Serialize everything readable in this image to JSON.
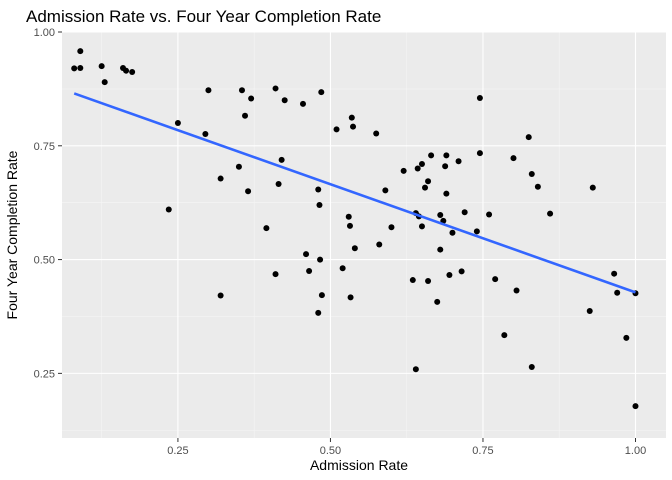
{
  "chart_data": {
    "type": "scatter",
    "title": "Admission Rate vs. Four Year Completion Rate",
    "xlabel": "Admission Rate",
    "ylabel": "Four Year Completion Rate",
    "xlim": [
      0.06,
      1.05
    ],
    "ylim": [
      0.108,
      1.0
    ],
    "x_ticks": [
      0.25,
      0.5,
      0.75,
      1.0
    ],
    "x_tick_labels": [
      "0.25",
      "0.50",
      "0.75",
      "1.00"
    ],
    "y_ticks": [
      0.25,
      0.5,
      0.75,
      1.0
    ],
    "y_tick_labels": [
      "0.25",
      "0.50",
      "0.75",
      "1.00"
    ],
    "grid": true,
    "colors": {
      "panel": "#ebebeb",
      "grid_major": "#ffffff",
      "grid_minor": "#f5f5f5",
      "point": "#000000",
      "trend": "#3366ff"
    },
    "trend_line": {
      "x": [
        0.08,
        1.0
      ],
      "y": [
        0.865,
        0.428
      ]
    },
    "points": [
      {
        "x": 0.08,
        "y": 0.92
      },
      {
        "x": 0.09,
        "y": 0.958
      },
      {
        "x": 0.09,
        "y": 0.921
      },
      {
        "x": 0.125,
        "y": 0.925
      },
      {
        "x": 0.13,
        "y": 0.89
      },
      {
        "x": 0.16,
        "y": 0.921
      },
      {
        "x": 0.165,
        "y": 0.915
      },
      {
        "x": 0.175,
        "y": 0.912
      },
      {
        "x": 0.235,
        "y": 0.61
      },
      {
        "x": 0.25,
        "y": 0.8
      },
      {
        "x": 0.295,
        "y": 0.776
      },
      {
        "x": 0.3,
        "y": 0.872
      },
      {
        "x": 0.32,
        "y": 0.678
      },
      {
        "x": 0.32,
        "y": 0.421
      },
      {
        "x": 0.35,
        "y": 0.704
      },
      {
        "x": 0.355,
        "y": 0.872
      },
      {
        "x": 0.36,
        "y": 0.816
      },
      {
        "x": 0.365,
        "y": 0.65
      },
      {
        "x": 0.37,
        "y": 0.854
      },
      {
        "x": 0.395,
        "y": 0.569
      },
      {
        "x": 0.41,
        "y": 0.876
      },
      {
        "x": 0.41,
        "y": 0.468
      },
      {
        "x": 0.415,
        "y": 0.666
      },
      {
        "x": 0.42,
        "y": 0.719
      },
      {
        "x": 0.425,
        "y": 0.85
      },
      {
        "x": 0.455,
        "y": 0.842
      },
      {
        "x": 0.46,
        "y": 0.512
      },
      {
        "x": 0.465,
        "y": 0.475
      },
      {
        "x": 0.48,
        "y": 0.383
      },
      {
        "x": 0.48,
        "y": 0.654
      },
      {
        "x": 0.482,
        "y": 0.62
      },
      {
        "x": 0.483,
        "y": 0.5
      },
      {
        "x": 0.485,
        "y": 0.868
      },
      {
        "x": 0.486,
        "y": 0.422
      },
      {
        "x": 0.51,
        "y": 0.786
      },
      {
        "x": 0.52,
        "y": 0.481
      },
      {
        "x": 0.53,
        "y": 0.594
      },
      {
        "x": 0.532,
        "y": 0.574
      },
      {
        "x": 0.533,
        "y": 0.417
      },
      {
        "x": 0.535,
        "y": 0.812
      },
      {
        "x": 0.537,
        "y": 0.792
      },
      {
        "x": 0.54,
        "y": 0.525
      },
      {
        "x": 0.575,
        "y": 0.777
      },
      {
        "x": 0.58,
        "y": 0.533
      },
      {
        "x": 0.59,
        "y": 0.652
      },
      {
        "x": 0.6,
        "y": 0.571
      },
      {
        "x": 0.62,
        "y": 0.695
      },
      {
        "x": 0.635,
        "y": 0.455
      },
      {
        "x": 0.64,
        "y": 0.602
      },
      {
        "x": 0.64,
        "y": 0.259
      },
      {
        "x": 0.643,
        "y": 0.7
      },
      {
        "x": 0.645,
        "y": 0.595
      },
      {
        "x": 0.65,
        "y": 0.71
      },
      {
        "x": 0.65,
        "y": 0.573
      },
      {
        "x": 0.655,
        "y": 0.658
      },
      {
        "x": 0.66,
        "y": 0.672
      },
      {
        "x": 0.66,
        "y": 0.453
      },
      {
        "x": 0.665,
        "y": 0.729
      },
      {
        "x": 0.675,
        "y": 0.407
      },
      {
        "x": 0.68,
        "y": 0.598
      },
      {
        "x": 0.68,
        "y": 0.522
      },
      {
        "x": 0.685,
        "y": 0.585
      },
      {
        "x": 0.688,
        "y": 0.705
      },
      {
        "x": 0.69,
        "y": 0.729
      },
      {
        "x": 0.69,
        "y": 0.645
      },
      {
        "x": 0.695,
        "y": 0.466
      },
      {
        "x": 0.7,
        "y": 0.559
      },
      {
        "x": 0.71,
        "y": 0.716
      },
      {
        "x": 0.715,
        "y": 0.474
      },
      {
        "x": 0.72,
        "y": 0.604
      },
      {
        "x": 0.74,
        "y": 0.562
      },
      {
        "x": 0.745,
        "y": 0.855
      },
      {
        "x": 0.745,
        "y": 0.734
      },
      {
        "x": 0.76,
        "y": 0.599
      },
      {
        "x": 0.77,
        "y": 0.457
      },
      {
        "x": 0.785,
        "y": 0.334
      },
      {
        "x": 0.8,
        "y": 0.723
      },
      {
        "x": 0.805,
        "y": 0.432
      },
      {
        "x": 0.825,
        "y": 0.769
      },
      {
        "x": 0.83,
        "y": 0.688
      },
      {
        "x": 0.83,
        "y": 0.264
      },
      {
        "x": 0.84,
        "y": 0.66
      },
      {
        "x": 0.86,
        "y": 0.601
      },
      {
        "x": 0.925,
        "y": 0.387
      },
      {
        "x": 0.93,
        "y": 0.658
      },
      {
        "x": 0.965,
        "y": 0.469
      },
      {
        "x": 0.97,
        "y": 0.427
      },
      {
        "x": 0.985,
        "y": 0.328
      },
      {
        "x": 1.0,
        "y": 0.426
      },
      {
        "x": 1.0,
        "y": 0.178
      }
    ]
  }
}
